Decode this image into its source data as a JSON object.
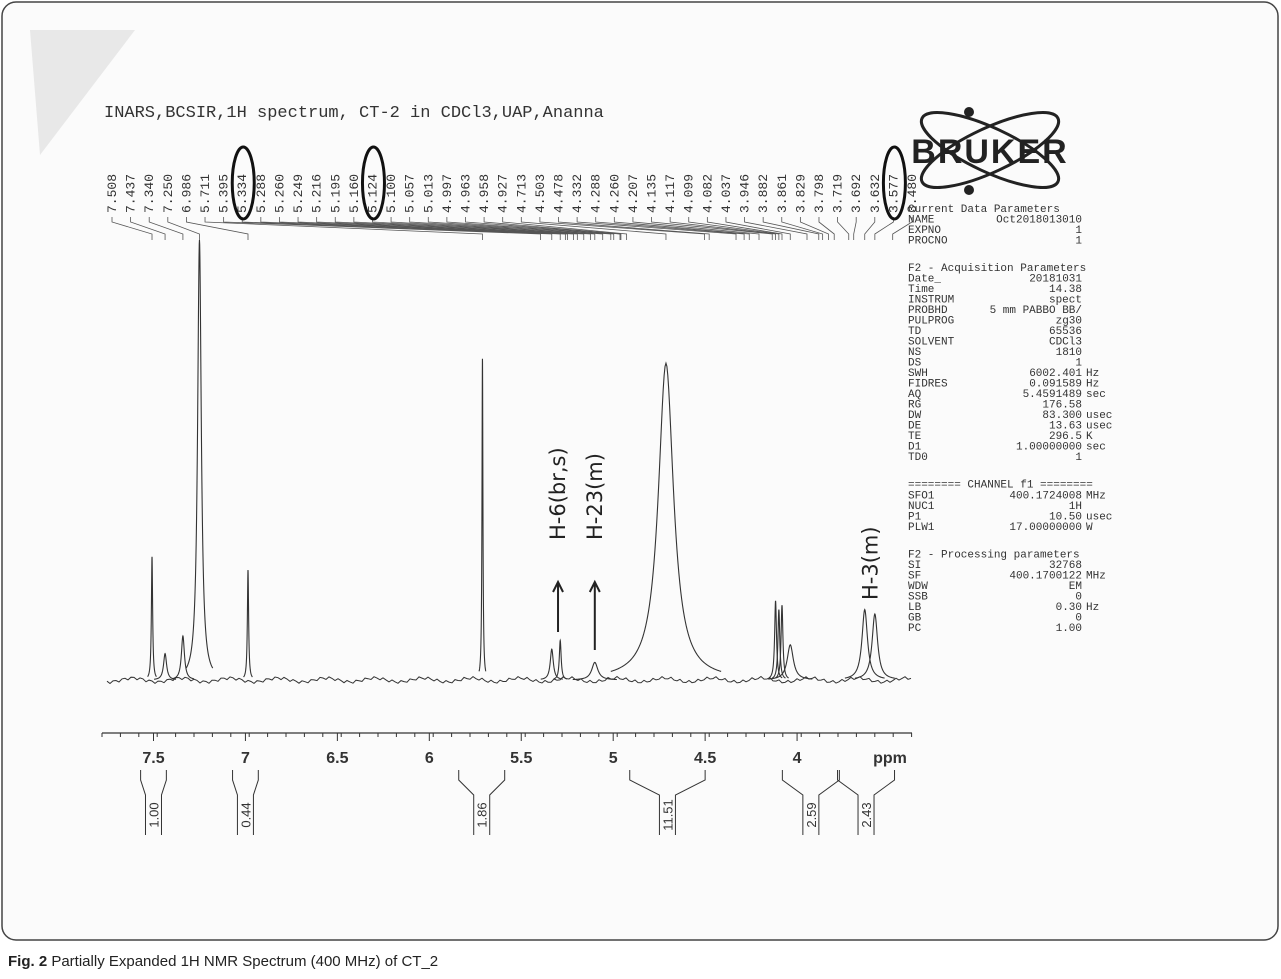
{
  "chart_data": {
    "type": "nmr",
    "title": "INARS,BCSIR,1H spectrum, CT-2 in CDCl3,UAP,Ananna",
    "xlim": [
      7.78,
      3.375
    ],
    "xticks": [
      7.5,
      7.0,
      6.5,
      6.0,
      5.5,
      5.0,
      4.5,
      4.0
    ],
    "xlabel": "ppm",
    "ylim": [
      0,
      100
    ],
    "peak_labels": [
      "7.508",
      "7.437",
      "7.340",
      "7.250",
      "6.986",
      "5.711",
      "5.395",
      "5.334",
      "5.288",
      "5.260",
      "5.249",
      "5.216",
      "5.195",
      "5.160",
      "5.124",
      "5.100",
      "5.057",
      "5.013",
      "4.997",
      "4.963",
      "4.958",
      "4.927",
      "4.713",
      "4.503",
      "4.478",
      "4.332",
      "4.288",
      "4.260",
      "4.207",
      "4.135",
      "4.117",
      "4.099",
      "4.082",
      "4.037",
      "3.946",
      "3.882",
      "3.861",
      "3.829",
      "3.798",
      "3.719",
      "3.692",
      "3.632",
      "3.577",
      "3.480"
    ],
    "circled_peak_labels": [
      "5.334",
      "5.124",
      "3.577"
    ],
    "peaks": {
      "x": [
        7.508,
        7.437,
        7.34,
        7.25,
        6.986,
        5.711,
        5.334,
        5.288,
        5.1,
        4.713,
        4.117,
        4.099,
        4.082,
        4.037,
        3.632,
        3.577
      ],
      "values": [
        28,
        6,
        10,
        100,
        25,
        73,
        7,
        9,
        4,
        72,
        18,
        16,
        17,
        8,
        16,
        15
      ],
      "widths": [
        0.004,
        0.01,
        0.01,
        0.012,
        0.004,
        0.003,
        0.01,
        0.006,
        0.02,
        0.05,
        0.006,
        0.006,
        0.006,
        0.02,
        0.018,
        0.018
      ]
    },
    "integrals": {
      "ranges": [
        [
          7.57,
          7.43
        ],
        [
          7.07,
          6.93
        ],
        [
          5.84,
          5.59
        ],
        [
          4.91,
          4.5
        ],
        [
          4.08,
          3.77
        ],
        [
          3.78,
          3.47
        ]
      ],
      "values": [
        1,
        0.44,
        1.86,
        11.51,
        2.59,
        2.43
      ],
      "value_labels": [
        "1.00",
        "0.44",
        "1.86",
        "11.51",
        "2.59",
        "2.43"
      ]
    },
    "annotations": [
      {
        "text": "H-6(br,s)",
        "x": 5.3
      },
      {
        "text": "H-23(m)",
        "x": 5.1
      },
      {
        "text": "H-3(m)",
        "x": 3.6
      }
    ],
    "logo": "BRUKER",
    "parameters": [
      {
        "title": "Current Data Parameters",
        "rows": [
          [
            "NAME",
            "Oct2018013010"
          ],
          [
            "EXPNO",
            "1"
          ],
          [
            "PROCNO",
            "1"
          ]
        ]
      },
      {
        "title": "F2 - Acquisition Parameters",
        "rows": [
          [
            "Date_",
            "20181031"
          ],
          [
            "Time",
            "14.38"
          ],
          [
            "INSTRUM",
            "spect"
          ],
          [
            "PROBHD",
            "5 mm PABBO BB/"
          ],
          [
            "PULPROG",
            "zg30"
          ],
          [
            "TD",
            "65536"
          ],
          [
            "SOLVENT",
            "CDCl3"
          ],
          [
            "NS",
            "1810"
          ],
          [
            "DS",
            "1"
          ],
          [
            "SWH",
            "6002.401",
            "Hz"
          ],
          [
            "FIDRES",
            "0.091589",
            "Hz"
          ],
          [
            "AQ",
            "5.4591489",
            "sec"
          ],
          [
            "RG",
            "176.58"
          ],
          [
            "DW",
            "83.300",
            "usec"
          ],
          [
            "DE",
            "13.63",
            "usec"
          ],
          [
            "TE",
            "296.5",
            "K"
          ],
          [
            "D1",
            "1.00000000",
            "sec"
          ],
          [
            "TD0",
            "1"
          ]
        ]
      },
      {
        "title": "======== CHANNEL f1 ========",
        "rows": [
          [
            "SFO1",
            "400.1724008",
            "MHz"
          ],
          [
            "NUC1",
            "1H"
          ],
          [
            "P1",
            "10.50",
            "usec"
          ],
          [
            "PLW1",
            "17.00000000",
            "W"
          ]
        ]
      },
      {
        "title": "F2 - Processing parameters",
        "rows": [
          [
            "SI",
            "32768"
          ],
          [
            "SF",
            "400.1700122",
            "MHz"
          ],
          [
            "WDW",
            "EM"
          ],
          [
            "SSB",
            "0"
          ],
          [
            "LB",
            "0.30",
            "Hz"
          ],
          [
            "GB",
            "0"
          ],
          [
            "PC",
            "1.00"
          ]
        ]
      }
    ],
    "caption": {
      "label": "Fig. 2",
      "text": " Partially Expanded 1H NMR Spectrum (400 MHz) of CT_2"
    }
  }
}
